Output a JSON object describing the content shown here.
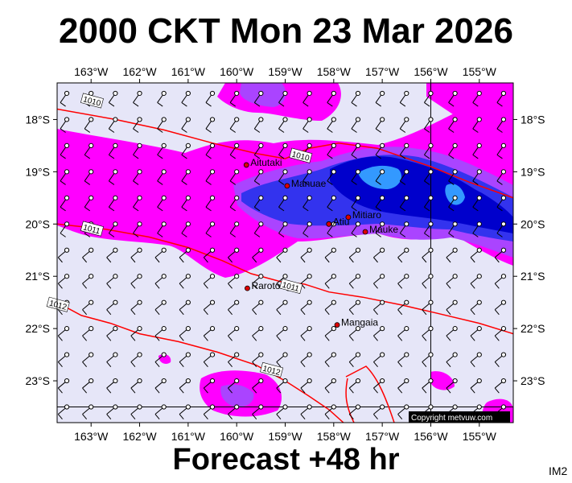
{
  "title": "2000 CKT Mon 23 Mar 2026",
  "footer": "Forecast +48 hr",
  "corner_label": "IM2",
  "copyright": "Copyright metvuw.com",
  "colors": {
    "background": "#e6e6f8",
    "rain_light": "#ff00ff",
    "rain_medium": "#aa44ff",
    "rain_heavy": "#3333ee",
    "rain_very_heavy": "#0000cc",
    "rain_extreme": "#3399ff",
    "isobar": "#ff0000",
    "grid": "#000000",
    "town": "#dd0000"
  },
  "map": {
    "lon_range": [
      -163.7,
      -154.3
    ],
    "lat_range": [
      -23.8,
      -17.3
    ],
    "lon_ticks": [
      "163°W",
      "162°W",
      "161°W",
      "160°W",
      "159°W",
      "158°W",
      "157°W",
      "156°W",
      "155°W"
    ],
    "lon_values": [
      -163,
      -162,
      -161,
      -160,
      -159,
      -158,
      -157,
      -156,
      -155
    ],
    "lat_ticks": [
      "18°S",
      "19°S",
      "20°S",
      "21°S",
      "22°S",
      "23°S"
    ],
    "lat_values": [
      -18,
      -19,
      -20,
      -21,
      -22,
      -23
    ],
    "places": [
      {
        "name": "Aitutaki",
        "lon": -159.8,
        "lat": -18.87
      },
      {
        "name": "Manuae",
        "lon": -158.96,
        "lat": -19.27
      },
      {
        "name": "Mitiaro",
        "lon": -157.7,
        "lat": -19.87
      },
      {
        "name": "Atiu",
        "lon": -158.1,
        "lat": -20.0
      },
      {
        "name": "Mauke",
        "lon": -157.35,
        "lat": -20.15
      },
      {
        "name": "Rarotonga",
        "lon": -159.78,
        "lat": -21.23
      },
      {
        "name": "Mangaia",
        "lon": -157.93,
        "lat": -21.93
      }
    ],
    "isobar_labels": [
      {
        "text": "1010",
        "lon": -163.0,
        "lat": -17.65
      },
      {
        "text": "1010",
        "lon": -158.7,
        "lat": -18.7
      },
      {
        "text": "1011",
        "lon": -163.0,
        "lat": -20.1
      },
      {
        "text": "1011",
        "lon": -158.9,
        "lat": -21.2
      },
      {
        "text": "1012",
        "lon": -163.7,
        "lat": -21.55
      },
      {
        "text": "1012",
        "lon": -159.3,
        "lat": -22.8
      }
    ],
    "isobars": [
      {
        "value": 1010,
        "points": [
          [
            -163.7,
            -17.8
          ],
          [
            -162.5,
            -18.0
          ],
          [
            -161.5,
            -18.2
          ],
          [
            -160.5,
            -18.45
          ],
          [
            -159.6,
            -18.65
          ],
          [
            -159.0,
            -18.75
          ],
          [
            -158.5,
            -18.55
          ],
          [
            -157.9,
            -18.45
          ],
          [
            -157.1,
            -18.55
          ],
          [
            -156.0,
            -18.9
          ],
          [
            -155.2,
            -19.2
          ],
          [
            -154.3,
            -19.5
          ]
        ]
      },
      {
        "value": 1011,
        "points": [
          [
            -163.7,
            -20.0
          ],
          [
            -162.7,
            -20.1
          ],
          [
            -161.8,
            -20.25
          ],
          [
            -161.0,
            -20.45
          ],
          [
            -160.3,
            -20.7
          ],
          [
            -159.7,
            -20.95
          ],
          [
            -159.1,
            -21.1
          ],
          [
            -158.6,
            -21.15
          ],
          [
            -158.1,
            -21.3
          ],
          [
            -157.4,
            -21.4
          ],
          [
            -156.6,
            -21.55
          ],
          [
            -155.9,
            -21.7
          ],
          [
            -155.0,
            -21.9
          ],
          [
            -154.3,
            -22.1
          ]
        ]
      },
      {
        "value": 1012,
        "points": [
          [
            -163.7,
            -21.5
          ],
          [
            -163.2,
            -21.75
          ],
          [
            -162.6,
            -21.9
          ],
          [
            -162.0,
            -22.1
          ],
          [
            -161.2,
            -22.25
          ],
          [
            -160.4,
            -22.45
          ],
          [
            -159.6,
            -22.7
          ],
          [
            -159.0,
            -23.0
          ],
          [
            -158.5,
            -23.3
          ],
          [
            -158.1,
            -23.55
          ],
          [
            -157.8,
            -23.8
          ]
        ]
      }
    ]
  }
}
